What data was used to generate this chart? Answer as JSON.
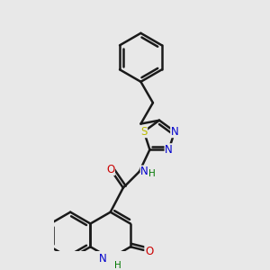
{
  "bg_color": "#e8e8e8",
  "bond_color": "#1a1a1a",
  "bond_width": 1.8,
  "atom_colors": {
    "N": "#0000cc",
    "O": "#cc0000",
    "S": "#bbbb00",
    "H": "#007700",
    "C": "#1a1a1a"
  },
  "font_size": 8.5
}
